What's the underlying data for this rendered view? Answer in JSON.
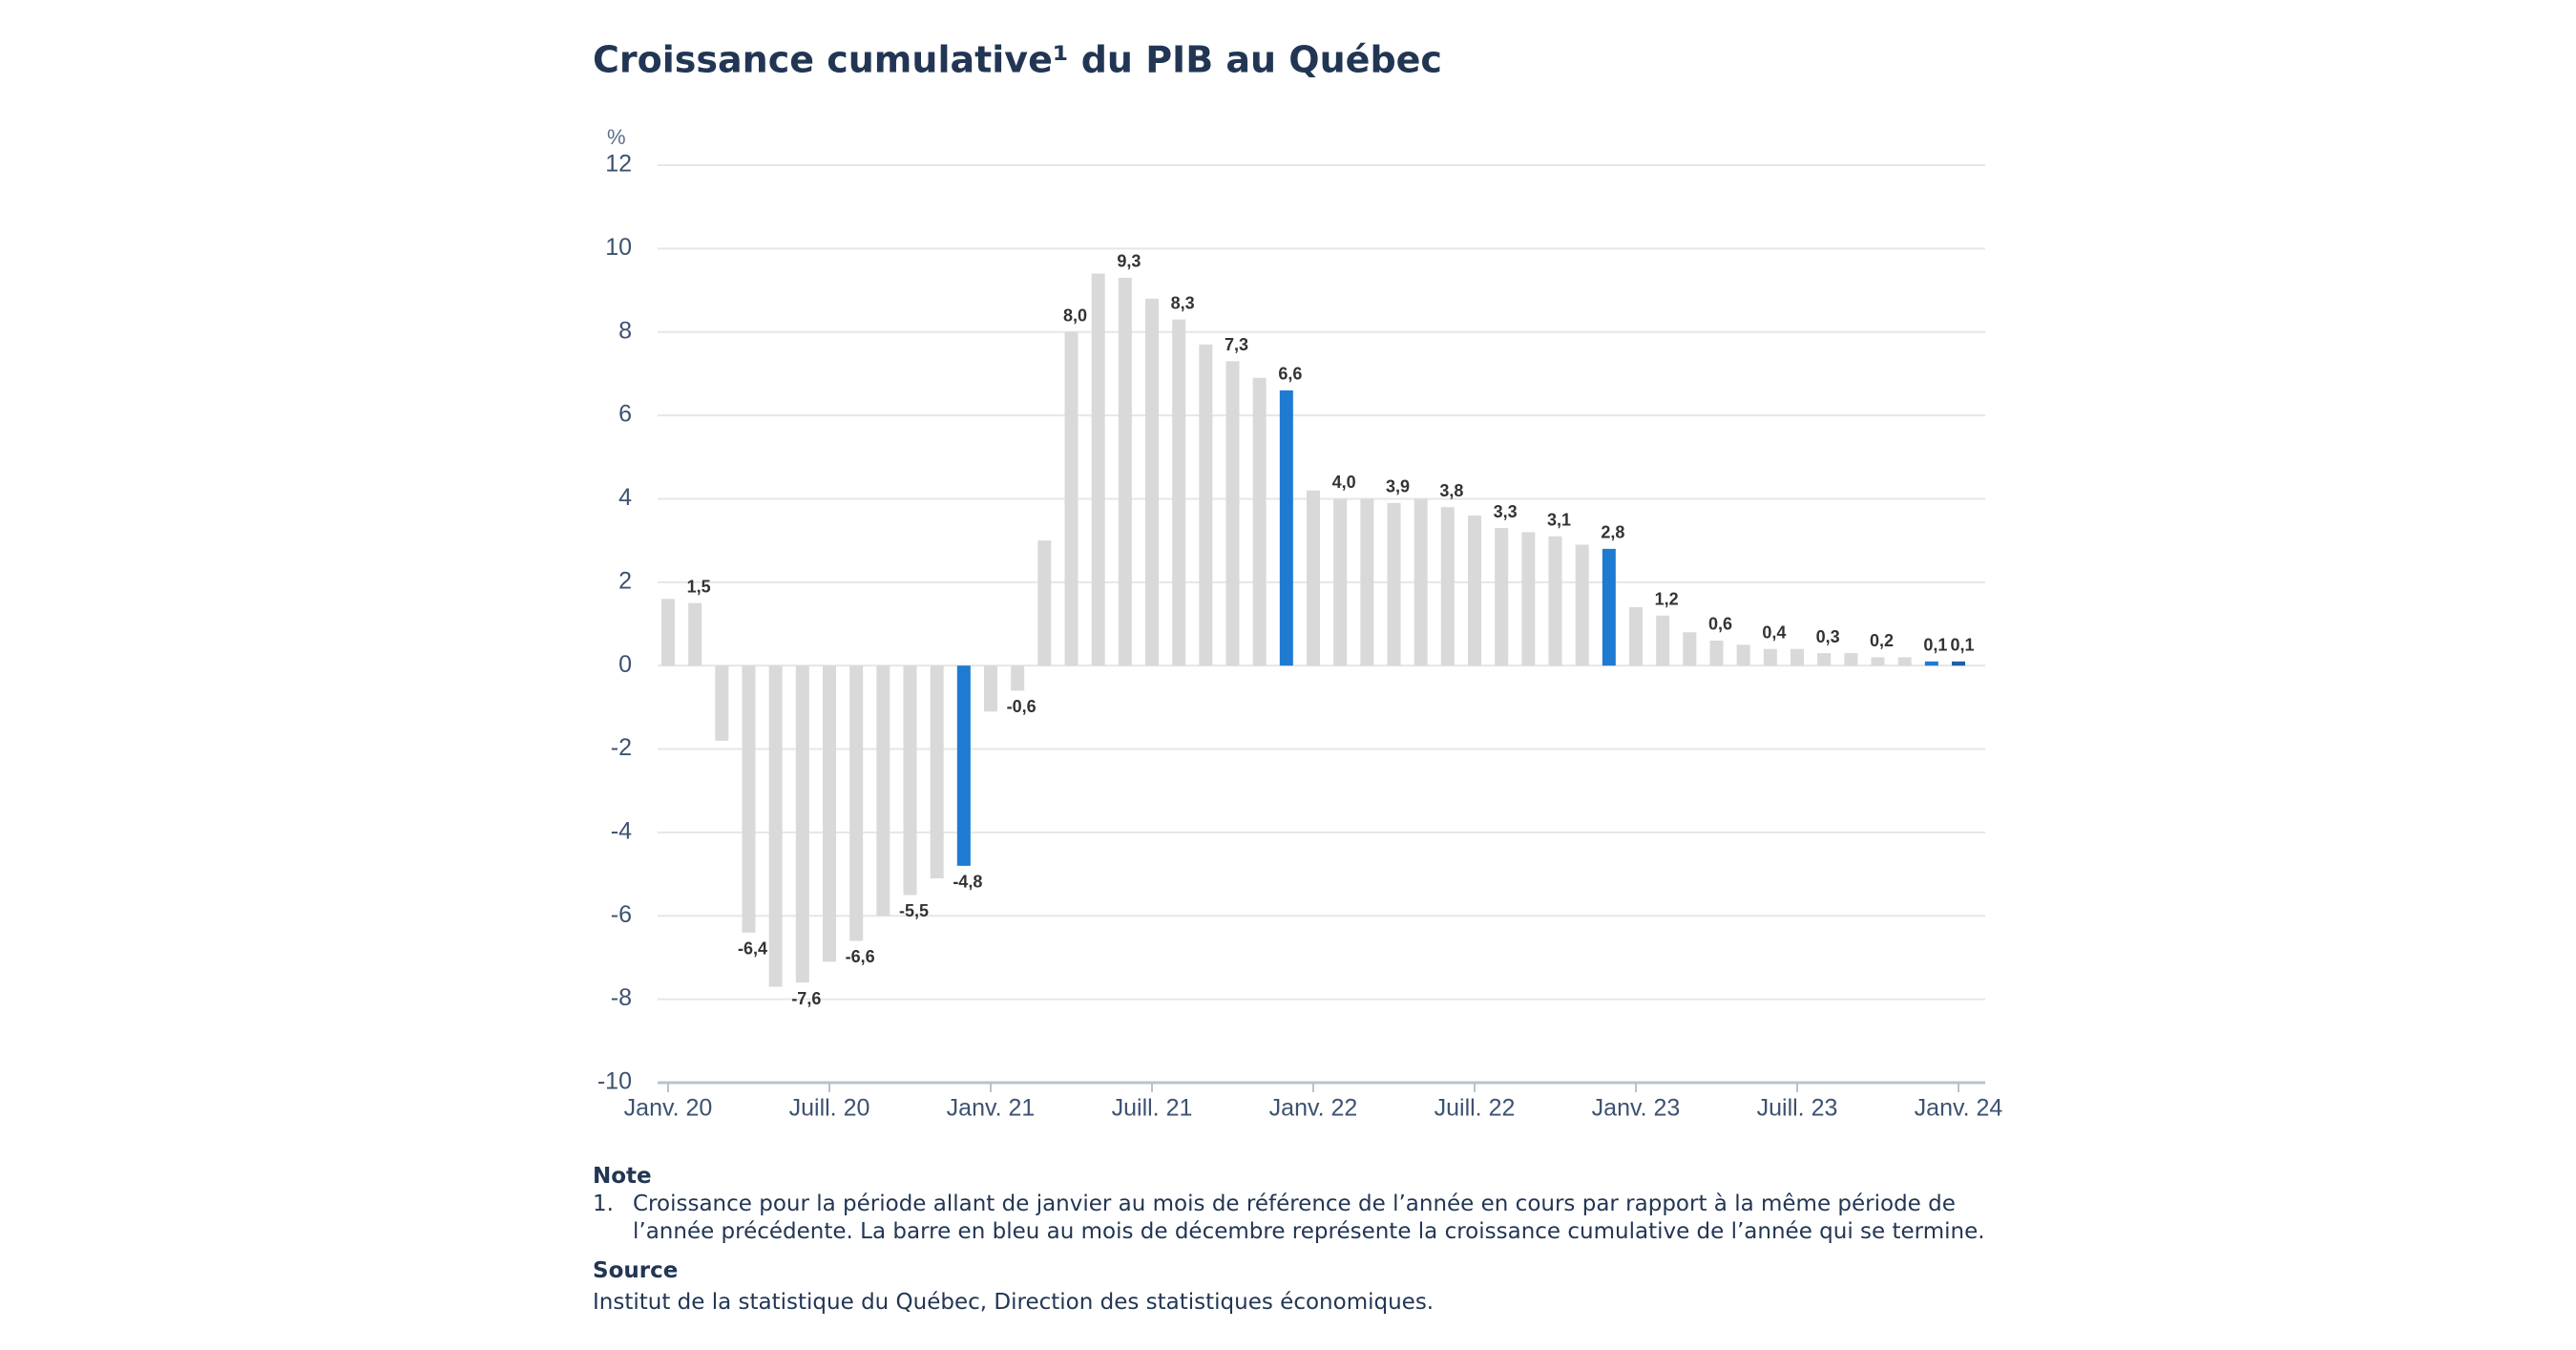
{
  "chart_data": {
    "type": "bar",
    "title": "Croissance cumulative¹ du PIB au Québec",
    "y_label": "%",
    "categories": [
      "Janv. 20",
      null,
      null,
      null,
      null,
      null,
      "Juill. 20",
      null,
      null,
      null,
      null,
      null,
      "Janv. 21",
      null,
      null,
      null,
      null,
      null,
      "Juill. 21",
      null,
      null,
      null,
      null,
      null,
      "Janv. 22",
      null,
      null,
      null,
      null,
      null,
      "Juill. 22",
      null,
      null,
      null,
      null,
      null,
      "Janv. 23",
      null,
      null,
      null,
      null,
      null,
      "Juill. 23",
      null,
      null,
      null,
      null,
      null,
      "Janv. 24"
    ],
    "values": [
      1.6,
      1.5,
      -1.8,
      -6.4,
      -7.7,
      -7.6,
      -7.1,
      -6.6,
      -6.0,
      -5.5,
      -5.1,
      -4.8,
      -1.1,
      -0.6,
      3.0,
      8.0,
      9.4,
      9.3,
      8.8,
      8.3,
      7.7,
      7.3,
      6.9,
      6.6,
      4.2,
      4.0,
      4.0,
      3.9,
      4.0,
      3.8,
      3.6,
      3.3,
      3.2,
      3.1,
      2.9,
      2.8,
      1.4,
      1.2,
      0.8,
      0.6,
      0.5,
      0.4,
      0.4,
      0.3,
      0.3,
      0.2,
      0.2,
      0.1,
      0.1
    ],
    "value_labels": [
      null,
      "1,5",
      null,
      "-6,4",
      null,
      "-7,6",
      null,
      "-6,6",
      null,
      "-5,5",
      null,
      "-4,8",
      null,
      "-0,6",
      null,
      "8,0",
      null,
      "9,3",
      null,
      "8,3",
      null,
      "7,3",
      null,
      "6,6",
      null,
      "4,0",
      null,
      "3,9",
      null,
      "3,8",
      null,
      "3,3",
      null,
      "3,1",
      null,
      "2,8",
      null,
      "1,2",
      null,
      "0,6",
      null,
      "0,4",
      null,
      "0,3",
      null,
      "0,2",
      null,
      "0,1",
      "0,1"
    ],
    "colors": [
      "#d9d9d9",
      "#d9d9d9",
      "#d9d9d9",
      "#d9d9d9",
      "#d9d9d9",
      "#d9d9d9",
      "#d9d9d9",
      "#d9d9d9",
      "#d9d9d9",
      "#d9d9d9",
      "#d9d9d9",
      "#1e7bd1",
      "#d9d9d9",
      "#d9d9d9",
      "#d9d9d9",
      "#d9d9d9",
      "#d9d9d9",
      "#d9d9d9",
      "#d9d9d9",
      "#d9d9d9",
      "#d9d9d9",
      "#d9d9d9",
      "#d9d9d9",
      "#1e7bd1",
      "#d9d9d9",
      "#d9d9d9",
      "#d9d9d9",
      "#d9d9d9",
      "#d9d9d9",
      "#d9d9d9",
      "#d9d9d9",
      "#d9d9d9",
      "#d9d9d9",
      "#d9d9d9",
      "#d9d9d9",
      "#1e7bd1",
      "#d9d9d9",
      "#d9d9d9",
      "#d9d9d9",
      "#d9d9d9",
      "#d9d9d9",
      "#d9d9d9",
      "#d9d9d9",
      "#d9d9d9",
      "#d9d9d9",
      "#d9d9d9",
      "#d9d9d9",
      "#1e7bd1",
      "#1e5fa8"
    ],
    "ylim": [
      -10,
      12
    ],
    "yticks": [
      -10,
      -8,
      -6,
      -4,
      -2,
      0,
      2,
      4,
      6,
      8,
      10,
      12
    ],
    "grid": true
  },
  "notes": {
    "heading": "Note",
    "number": "1.",
    "text": "Croissance pour la période allant de janvier au mois de référence de l’année en cours par rapport à la même période de l’année précédente. La barre en bleu au mois de décembre représente la croissance cumulative de l’année qui se termine."
  },
  "source": {
    "heading": "Source",
    "text": "Institut de la statistique du Québec, Direction des statistiques économiques."
  }
}
